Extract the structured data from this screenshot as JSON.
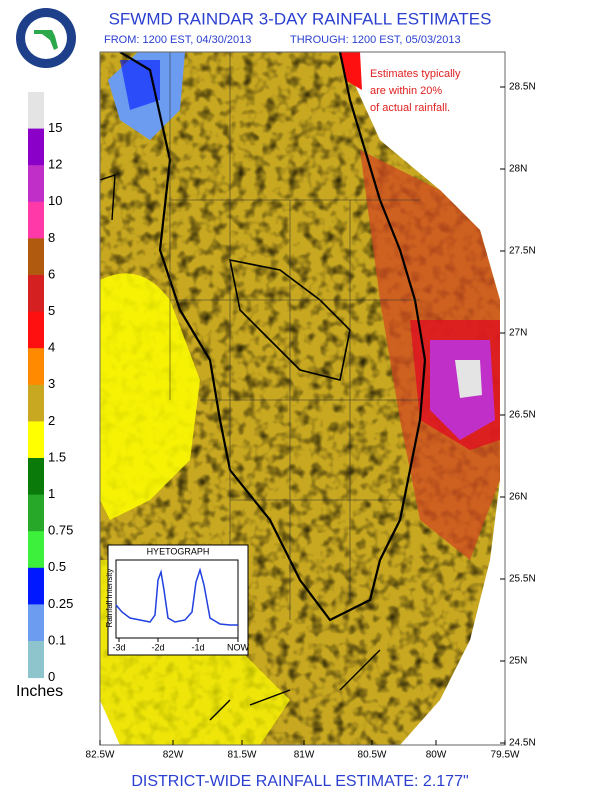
{
  "header": {
    "title": "SFWMD RAINDAR 3-DAY RAINFALL ESTIMATES",
    "from": "FROM: 1200 EST, 04/30/2013",
    "through": "THROUGH: 1200 EST, 05/03/2013"
  },
  "legend": {
    "colors": [
      "#e4e4e4",
      "#8a00c8",
      "#c030c8",
      "#ff3aa8",
      "#b05a10",
      "#d42020",
      "#ff1010",
      "#ff8a00",
      "#c8a820",
      "#ffff00",
      "#0a7a0a",
      "#28a828",
      "#3cf03c",
      "#0018ff",
      "#6c9cf0",
      "#8ec4cc"
    ],
    "labels": [
      "15",
      "12",
      "10",
      "8",
      "6",
      "5",
      "4",
      "3",
      "2",
      "1.5",
      "1",
      "0.75",
      "0.5",
      "0.25",
      "0.1",
      "0"
    ],
    "unit": "Inches"
  },
  "map": {
    "lat_labels": [
      "28.5N",
      "28N",
      "27.5N",
      "27N",
      "26.5N",
      "26N",
      "25.5N",
      "25N",
      "24.5N"
    ],
    "lon_labels": [
      "82.5W",
      "82W",
      "81.5W",
      "81W",
      "80.5W",
      "80W",
      "79.5W"
    ],
    "note": [
      "Estimates typically",
      "are within 20%",
      "of actual rainfall."
    ]
  },
  "hyetograph": {
    "title": "HYETOGRAPH",
    "y_label": "Rainfall Intensity",
    "x_labels": [
      "-3d",
      "-2d",
      "-1d",
      "NOW"
    ]
  },
  "footer": "DISTRICT-WIDE RAINFALL ESTIMATE: 2.177\""
}
